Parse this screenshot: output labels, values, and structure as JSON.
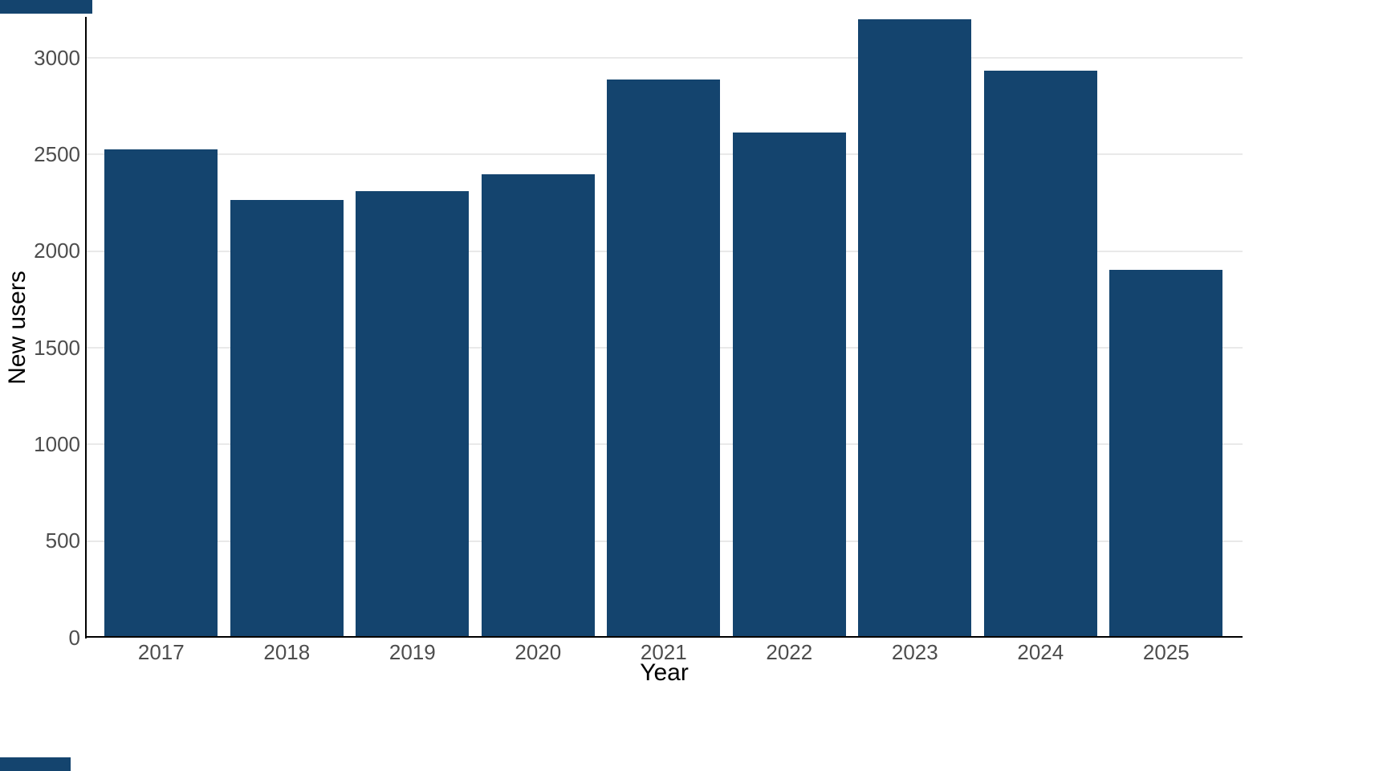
{
  "chart_data": {
    "type": "bar",
    "title": "",
    "xlabel": "Year",
    "ylabel": "New users",
    "categories": [
      "2017",
      "2018",
      "2019",
      "2020",
      "2021",
      "2022",
      "2023",
      "2024",
      "2025"
    ],
    "values": [
      2525,
      2265,
      2310,
      2400,
      2890,
      2615,
      3200,
      2935,
      1905
    ],
    "yticks": [
      0,
      500,
      1000,
      1500,
      2000,
      2500,
      3000
    ],
    "ylim": [
      0,
      3300
    ],
    "grid": "horizontal major gridlines only",
    "legend_position": "none",
    "colors": {
      "bar": "#14446e",
      "background": "#ffffff",
      "gridline": "#e9e9e9",
      "axis_line": "#000000",
      "tick_label": "#4d4d4d",
      "axis_title": "#000000"
    }
  },
  "decorations": {
    "corner_marks_color": "#14446e"
  }
}
